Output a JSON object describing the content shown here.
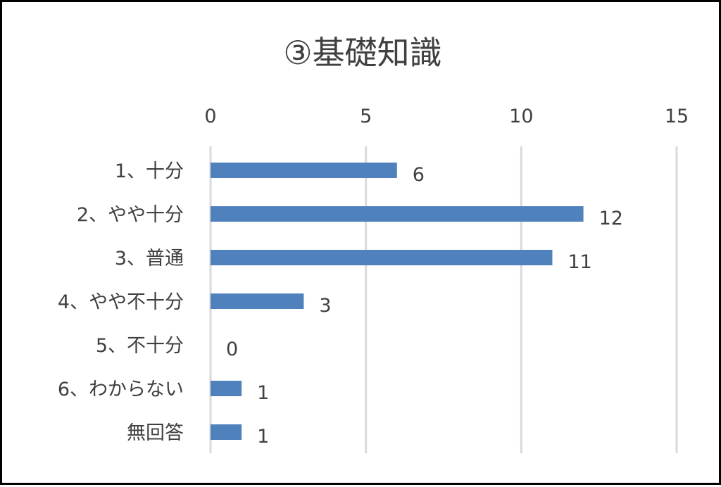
{
  "chart_data": {
    "type": "bar",
    "orientation": "horizontal",
    "title": "③基礎知識",
    "categories": [
      "1、十分",
      "2、やや十分",
      "3、普通",
      "4、やや不十分",
      "5、不十分",
      "6、わからない",
      "無回答"
    ],
    "values": [
      6,
      12,
      11,
      3,
      0,
      1,
      1
    ],
    "xlim": [
      0,
      15
    ],
    "ticks": [
      0,
      5,
      10,
      15
    ],
    "tick_labels": [
      "0",
      "5",
      "10",
      "15"
    ],
    "x_axis_position": "top",
    "grid": true,
    "legend": "none",
    "data_labels": true,
    "colors": {
      "bar": "#4f81bd",
      "grid": "#d9d9de",
      "text": "#404040",
      "border": "#000000"
    }
  }
}
